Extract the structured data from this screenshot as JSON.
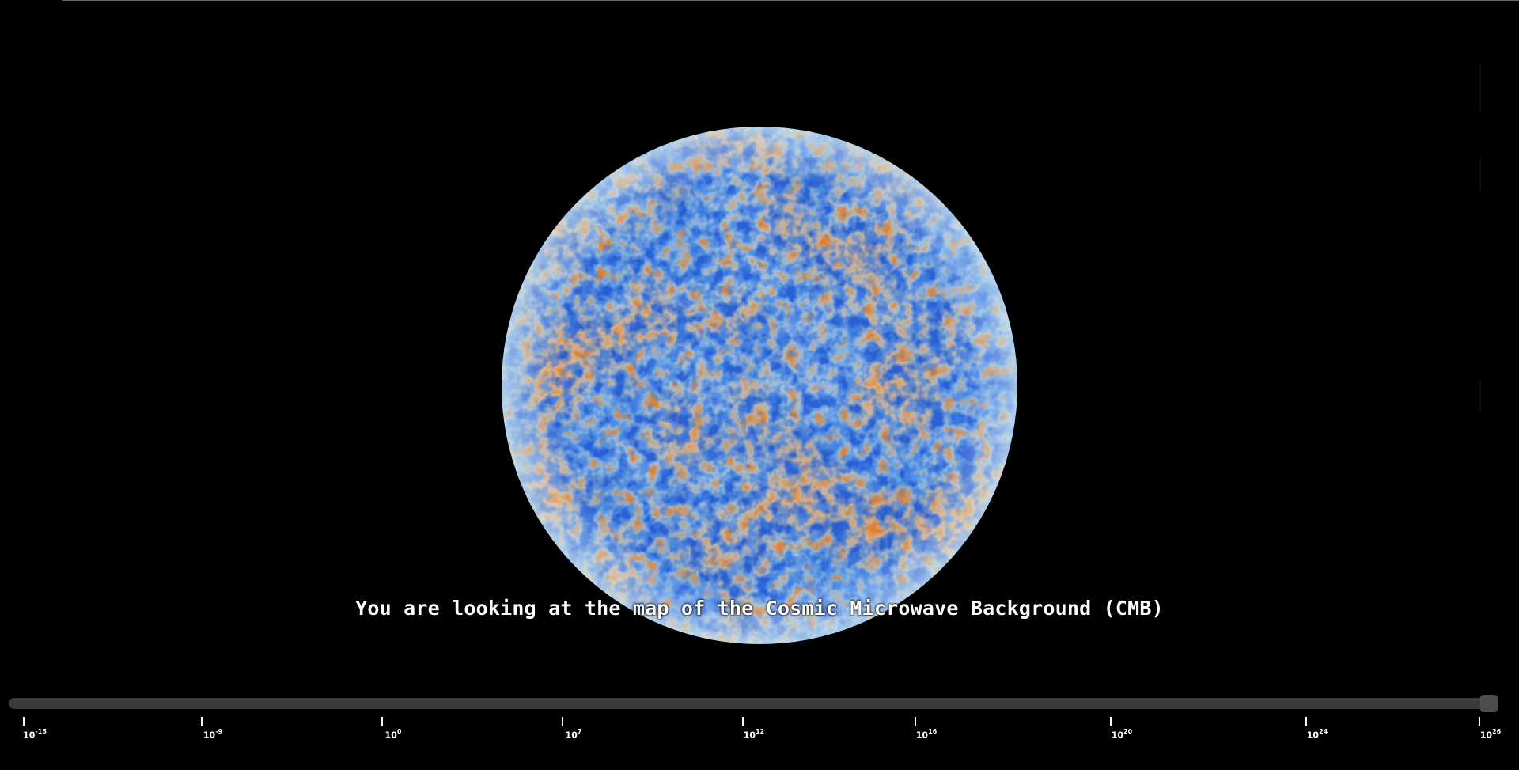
{
  "caption": "You are looking at the map of the Cosmic Microwave Background (CMB)",
  "scale_slider": {
    "ticks": [
      {
        "base": "10",
        "exp": "-15"
      },
      {
        "base": "10",
        "exp": "-9"
      },
      {
        "base": "10",
        "exp": "0"
      },
      {
        "base": "10",
        "exp": "7"
      },
      {
        "base": "10",
        "exp": "12"
      },
      {
        "base": "10",
        "exp": "16"
      },
      {
        "base": "10",
        "exp": "20"
      },
      {
        "base": "10",
        "exp": "24"
      },
      {
        "base": "10",
        "exp": "26"
      }
    ],
    "value_fraction": 1.0
  },
  "colors": {
    "background": "#000000",
    "track": "#3a3a3a",
    "thumb": "#4d4d4d",
    "cmb_cold": "#1e5fd6",
    "cmb_mid": "#cfe3e6",
    "cmb_warm": "#e8872a"
  },
  "icons": {
    "globe": "cmb-sphere"
  }
}
